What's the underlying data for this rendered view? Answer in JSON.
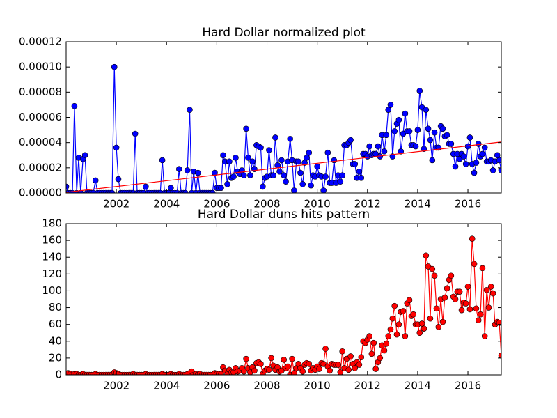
{
  "chart_data": [
    {
      "type": "line",
      "title": "Hard Dollar normalized plot",
      "xlim": [
        2000,
        2017.33
      ],
      "xticks": [
        2002,
        2004,
        2006,
        2008,
        2010,
        2012,
        2014,
        2016
      ],
      "ylim": [
        0,
        0.00012
      ],
      "yticks": [
        {
          "value": 0,
          "label": "0.00000"
        },
        {
          "value": 2e-05,
          "label": "0.00002"
        },
        {
          "value": 4e-05,
          "label": "0.00004"
        },
        {
          "value": 6e-05,
          "label": "0.00006"
        },
        {
          "value": 8e-05,
          "label": "0.00008"
        },
        {
          "value": 0.0001,
          "label": "0.00010"
        },
        {
          "value": 0.00012,
          "label": "0.00012"
        }
      ],
      "x": [
        2000.0,
        2000.08,
        2000.17,
        2000.25,
        2000.33,
        2000.42,
        2000.5,
        2000.58,
        2000.67,
        2000.75,
        2000.83,
        2000.92,
        2001.0,
        2001.08,
        2001.17,
        2001.25,
        2001.33,
        2001.42,
        2001.5,
        2001.58,
        2001.67,
        2001.75,
        2001.83,
        2001.92,
        2002.0,
        2002.08,
        2002.17,
        2002.25,
        2002.33,
        2002.42,
        2002.5,
        2002.58,
        2002.67,
        2002.75,
        2002.83,
        2002.92,
        2003.0,
        2003.08,
        2003.17,
        2003.25,
        2003.33,
        2003.42,
        2003.5,
        2003.58,
        2003.67,
        2003.75,
        2003.83,
        2003.92,
        2004.0,
        2004.08,
        2004.17,
        2004.25,
        2004.33,
        2004.42,
        2004.5,
        2004.58,
        2004.67,
        2004.75,
        2004.83,
        2004.92,
        2005.0,
        2005.08,
        2005.17,
        2005.25,
        2005.33,
        2005.42,
        2005.5,
        2005.58,
        2005.67,
        2005.75,
        2005.83,
        2005.92,
        2006.0,
        2006.08,
        2006.17,
        2006.25,
        2006.33,
        2006.42,
        2006.5,
        2006.58,
        2006.67,
        2006.75,
        2006.83,
        2006.92,
        2007.0,
        2007.08,
        2007.17,
        2007.25,
        2007.33,
        2007.42,
        2007.5,
        2007.58,
        2007.67,
        2007.75,
        2007.83,
        2007.92,
        2008.0,
        2008.08,
        2008.17,
        2008.25,
        2008.33,
        2008.42,
        2008.5,
        2008.58,
        2008.67,
        2008.75,
        2008.83,
        2008.92,
        2009.0,
        2009.08,
        2009.17,
        2009.25,
        2009.33,
        2009.42,
        2009.5,
        2009.58,
        2009.67,
        2009.75,
        2009.83,
        2009.92,
        2010.0,
        2010.08,
        2010.17,
        2010.25,
        2010.33,
        2010.42,
        2010.5,
        2010.58,
        2010.67,
        2010.75,
        2010.83,
        2010.92,
        2011.0,
        2011.08,
        2011.17,
        2011.25,
        2011.33,
        2011.42,
        2011.5,
        2011.58,
        2011.67,
        2011.75,
        2011.83,
        2011.92,
        2012.0,
        2012.08,
        2012.17,
        2012.25,
        2012.33,
        2012.42,
        2012.5,
        2012.58,
        2012.67,
        2012.75,
        2012.83,
        2012.92,
        2013.0,
        2013.08,
        2013.17,
        2013.25,
        2013.33,
        2013.42,
        2013.5,
        2013.58,
        2013.67,
        2013.75,
        2013.83,
        2013.92,
        2014.0,
        2014.08,
        2014.17,
        2014.25,
        2014.33,
        2014.42,
        2014.5,
        2014.58,
        2014.67,
        2014.75,
        2014.83,
        2014.92,
        2015.0,
        2015.08,
        2015.17,
        2015.25,
        2015.33,
        2015.42,
        2015.5,
        2015.58,
        2015.67,
        2015.75,
        2015.83,
        2015.92,
        2016.0,
        2016.08,
        2016.17,
        2016.25,
        2016.33,
        2016.42,
        2016.5,
        2016.58,
        2016.67,
        2016.75,
        2016.83,
        2016.92,
        2017.0,
        2017.08,
        2017.17,
        2017.25,
        2017.33
      ],
      "series": [
        {
          "color": "#0000ff",
          "marker": "o",
          "values": [
            5e-06,
            0,
            0,
            0,
            6.9e-05,
            0,
            2.8e-05,
            0,
            2.7e-05,
            3e-05,
            0,
            0,
            0,
            0,
            1e-05,
            0,
            0,
            0,
            0,
            0,
            0,
            0,
            0,
            0.0001,
            3.6e-05,
            1.1e-05,
            0,
            0,
            0,
            0,
            0,
            0,
            0,
            4.7e-05,
            0,
            0,
            0,
            0,
            5e-06,
            0,
            0,
            0,
            0,
            0,
            0,
            0,
            2.6e-05,
            0,
            0,
            0,
            4e-06,
            0,
            0,
            0,
            1.9e-05,
            0,
            0,
            0,
            1.8e-05,
            6.6e-05,
            0,
            1.7e-05,
            0,
            1.6e-05,
            0,
            0,
            0,
            0,
            0,
            0,
            0,
            1.6e-05,
            4e-06,
            4e-06,
            4e-06,
            3e-05,
            2.5e-05,
            7e-06,
            2.5e-05,
            1.2e-05,
            1.3e-05,
            2.8e-05,
            1.7e-05,
            1.5e-05,
            1.8e-05,
            1.4e-05,
            5.1e-05,
            2.8e-05,
            1.4e-05,
            2.5e-05,
            1.9e-05,
            3.8e-05,
            3.7e-05,
            3.6e-05,
            5e-06,
            1.2e-05,
            1.3e-05,
            3.4e-05,
            1.4e-05,
            1.4e-05,
            4.4e-05,
            2.2e-05,
            1.7e-05,
            2.6e-05,
            1.4e-05,
            9e-06,
            2.5e-05,
            4.3e-05,
            2.6e-05,
            2e-06,
            2.5e-05,
            2.5e-05,
            1.6e-05,
            7e-06,
            2.4e-05,
            2.8e-05,
            3.2e-05,
            6e-06,
            1.4e-05,
            1.3e-05,
            2.1e-05,
            1.4e-05,
            1.3e-05,
            2e-06,
            1.3e-05,
            3.2e-05,
            8e-06,
            8e-06,
            2.6e-05,
            8e-06,
            1.4e-05,
            9e-06,
            1.4e-05,
            3.8e-05,
            3.8e-05,
            4e-05,
            4.2e-05,
            2.3e-05,
            2.3e-05,
            1.2e-05,
            1.7e-05,
            1.2e-05,
            3.1e-05,
            3.1e-05,
            2.9e-05,
            3.7e-05,
            3e-05,
            3.1e-05,
            3.1e-05,
            3.7e-05,
            2.9e-05,
            4.6e-05,
            3.3e-05,
            4.6e-05,
            6.6e-05,
            7e-05,
            2.9e-05,
            4.9e-05,
            5.5e-05,
            5.8e-05,
            3.3e-05,
            4.7e-05,
            6.3e-05,
            4.9e-05,
            4.9e-05,
            3.8e-05,
            3.8e-05,
            3.7e-05,
            5e-05,
            8.1e-05,
            6.8e-05,
            3.5e-05,
            6.6e-05,
            5.1e-05,
            4.2e-05,
            2.6e-05,
            4.8e-05,
            3.6e-05,
            3.6e-05,
            5.3e-05,
            5.1e-05,
            4.5e-05,
            4.6e-05,
            3.9e-05,
            3.9e-05,
            3.1e-05,
            2.1e-05,
            3.1e-05,
            2.7e-05,
            3.1e-05,
            2.9e-05,
            2.3e-05,
            3.7e-05,
            4.4e-05,
            2.3e-05,
            1.6e-05,
            2.4e-05,
            3.9e-05,
            2.9e-05,
            3.1e-05,
            3.6e-05,
            2.5e-05,
            2.5e-05,
            2.6e-05,
            1.8e-05,
            2.5e-05,
            3e-05,
            2.6e-05,
            1.8e-05
          ]
        },
        {
          "color": "#ff0000",
          "x": [
            2000,
            2017.33
          ],
          "values": [
            5e-07,
            4.05e-05
          ]
        }
      ]
    },
    {
      "type": "line",
      "title": "Hard Dollar duns hits pattern",
      "xlim": [
        2000,
        2017.33
      ],
      "xticks": [
        2002,
        2004,
        2006,
        2008,
        2010,
        2012,
        2014,
        2016
      ],
      "ylim": [
        0,
        180
      ],
      "yticks": [
        0,
        20,
        40,
        60,
        80,
        100,
        120,
        140,
        160,
        180
      ],
      "x": [
        2000.0,
        2000.08,
        2000.17,
        2000.25,
        2000.33,
        2000.42,
        2000.5,
        2000.58,
        2000.67,
        2000.75,
        2000.83,
        2000.92,
        2001.0,
        2001.08,
        2001.17,
        2001.25,
        2001.33,
        2001.42,
        2001.5,
        2001.58,
        2001.67,
        2001.75,
        2001.83,
        2001.92,
        2002.0,
        2002.08,
        2002.17,
        2002.25,
        2002.33,
        2002.42,
        2002.5,
        2002.58,
        2002.67,
        2002.75,
        2002.83,
        2002.92,
        2003.0,
        2003.08,
        2003.17,
        2003.25,
        2003.33,
        2003.42,
        2003.5,
        2003.58,
        2003.67,
        2003.75,
        2003.83,
        2003.92,
        2004.0,
        2004.08,
        2004.17,
        2004.25,
        2004.33,
        2004.42,
        2004.5,
        2004.58,
        2004.67,
        2004.75,
        2004.83,
        2004.92,
        2005.0,
        2005.08,
        2005.17,
        2005.25,
        2005.33,
        2005.42,
        2005.5,
        2005.58,
        2005.67,
        2005.75,
        2005.83,
        2005.92,
        2006.0,
        2006.08,
        2006.17,
        2006.25,
        2006.33,
        2006.42,
        2006.5,
        2006.58,
        2006.67,
        2006.75,
        2006.83,
        2006.92,
        2007.0,
        2007.08,
        2007.17,
        2007.25,
        2007.33,
        2007.42,
        2007.5,
        2007.58,
        2007.67,
        2007.75,
        2007.83,
        2007.92,
        2008.0,
        2008.08,
        2008.17,
        2008.25,
        2008.33,
        2008.42,
        2008.5,
        2008.58,
        2008.67,
        2008.75,
        2008.83,
        2008.92,
        2009.0,
        2009.08,
        2009.17,
        2009.25,
        2009.33,
        2009.42,
        2009.5,
        2009.58,
        2009.67,
        2009.75,
        2009.83,
        2009.92,
        2010.0,
        2010.08,
        2010.17,
        2010.25,
        2010.33,
        2010.42,
        2010.5,
        2010.58,
        2010.67,
        2010.75,
        2010.83,
        2010.92,
        2011.0,
        2011.08,
        2011.17,
        2011.25,
        2011.33,
        2011.42,
        2011.5,
        2011.58,
        2011.67,
        2011.75,
        2011.83,
        2011.92,
        2012.0,
        2012.08,
        2012.17,
        2012.25,
        2012.33,
        2012.42,
        2012.5,
        2012.58,
        2012.67,
        2012.75,
        2012.83,
        2012.92,
        2013.0,
        2013.08,
        2013.17,
        2013.25,
        2013.33,
        2013.42,
        2013.5,
        2013.58,
        2013.67,
        2013.75,
        2013.83,
        2013.92,
        2014.0,
        2014.08,
        2014.17,
        2014.25,
        2014.33,
        2014.42,
        2014.5,
        2014.58,
        2014.67,
        2014.75,
        2014.83,
        2014.92,
        2015.0,
        2015.08,
        2015.17,
        2015.25,
        2015.33,
        2015.42,
        2015.5,
        2015.58,
        2015.67,
        2015.75,
        2015.83,
        2015.92,
        2016.0,
        2016.08,
        2016.17,
        2016.25,
        2016.33,
        2016.42,
        2016.5,
        2016.58,
        2016.67,
        2016.75,
        2016.83,
        2016.92,
        2017.0,
        2017.08,
        2017.17,
        2017.25,
        2017.33
      ],
      "series": [
        {
          "color": "#ff0000",
          "marker": "o",
          "values": [
            0,
            2,
            1,
            0,
            1,
            1,
            0,
            0,
            1,
            0,
            0,
            0,
            0,
            0,
            1,
            0,
            0,
            0,
            0,
            0,
            0,
            0,
            0,
            3,
            2,
            1,
            0,
            0,
            0,
            0,
            0,
            0,
            1,
            0,
            0,
            0,
            0,
            0,
            1,
            0,
            0,
            0,
            0,
            0,
            0,
            0,
            1,
            0,
            0,
            0,
            1,
            0,
            0,
            0,
            1,
            0,
            0,
            0,
            1,
            2,
            4,
            0,
            1,
            0,
            1,
            0,
            0,
            0,
            0,
            0,
            0,
            2,
            1,
            1,
            1,
            9,
            5,
            1,
            6,
            3,
            3,
            8,
            4,
            5,
            8,
            4,
            19,
            8,
            3,
            9,
            5,
            14,
            15,
            13,
            1,
            5,
            7,
            6,
            20,
            11,
            6,
            9,
            4,
            5,
            18,
            8,
            10,
            0,
            19,
            2,
            8,
            13,
            8,
            4,
            12,
            14,
            13,
            5,
            8,
            6,
            10,
            7,
            14,
            13,
            31,
            10,
            5,
            13,
            12,
            12,
            12,
            3,
            28,
            8,
            19,
            6,
            22,
            13,
            8,
            15,
            12,
            21,
            40,
            38,
            42,
            46,
            25,
            38,
            7,
            15,
            20,
            35,
            29,
            37,
            46,
            54,
            67,
            82,
            48,
            60,
            75,
            76,
            46,
            85,
            89,
            70,
            72,
            60,
            60,
            50,
            61,
            55,
            142,
            129,
            67,
            126,
            118,
            79,
            57,
            90,
            63,
            92,
            103,
            113,
            118,
            93,
            90,
            99,
            99,
            77,
            86,
            85,
            105,
            78,
            162,
            132,
            79,
            65,
            72,
            127,
            46,
            101,
            80,
            105,
            97,
            60,
            63,
            62,
            23
          ]
        }
      ]
    }
  ]
}
